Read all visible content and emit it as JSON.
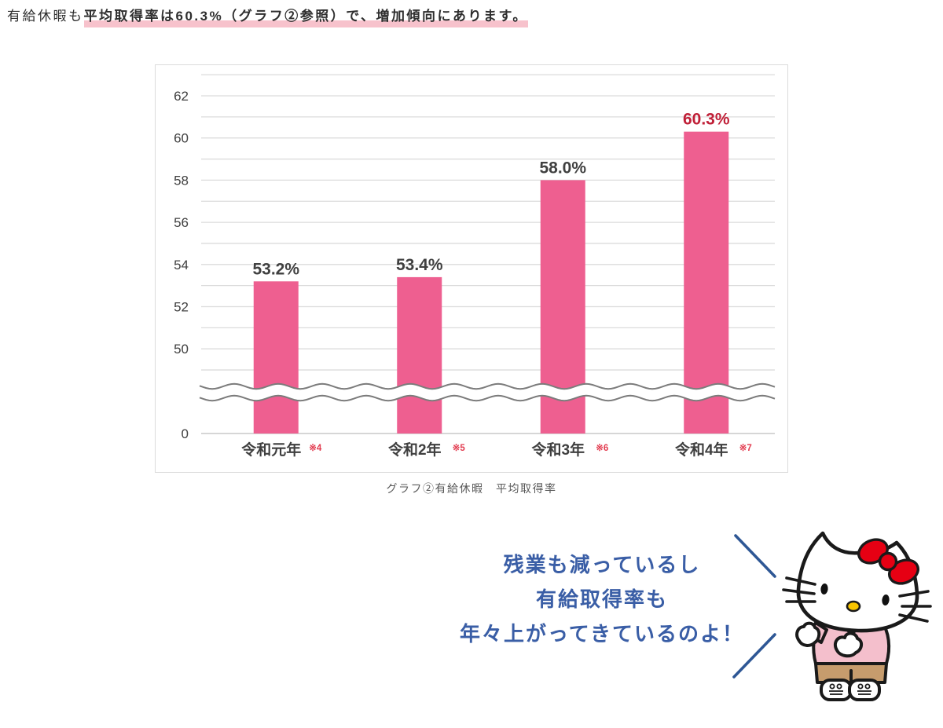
{
  "intro": {
    "normal": "有給休暇も",
    "highlighted": "平均取得率は60.3%（グラフ②参照）で、増加傾向にあります。"
  },
  "caption": "グラフ②有給休暇　平均取得率",
  "speech": {
    "lines": [
      "残業も減っているし",
      "有給取得率も",
      "年々上がってきているのよ！"
    ]
  },
  "colors": {
    "highlight_pink": "#F7C2CC",
    "speech_blue": "#3A5EA6",
    "emphasis_line_blue": "#2E5795",
    "bar_pink": "#EE5F90",
    "value_label_red": "#C02038",
    "footnote_red": "#E23A4E",
    "text_dark": "#404040",
    "grid_gray": "#DCDCDC"
  },
  "chart_data": {
    "type": "bar",
    "title": "グラフ②有給休暇　平均取得率",
    "categories": [
      "令和元年",
      "令和2年",
      "令和3年",
      "令和4年"
    ],
    "footnotes": [
      "※4",
      "※5",
      "※6",
      "※7"
    ],
    "values": [
      53.2,
      53.4,
      58.0,
      60.3
    ],
    "value_labels": [
      "53.2%",
      "53.4%",
      "58.0%",
      "60.3%"
    ],
    "value_label_colors": [
      "#404040",
      "#404040",
      "#404040",
      "#C02038"
    ],
    "unit": "%",
    "xlabel": "",
    "ylabel": "",
    "y_axis": {
      "ticks": [
        62,
        60,
        58,
        56,
        54,
        52,
        50
      ],
      "zero_label": "0",
      "grid_min": 49,
      "grid_max": 63,
      "grid_step": 1,
      "axis_break": true
    },
    "ylim_display": [
      49,
      63
    ],
    "bar_color": "#EE5F90",
    "grid": true,
    "legend": false
  }
}
